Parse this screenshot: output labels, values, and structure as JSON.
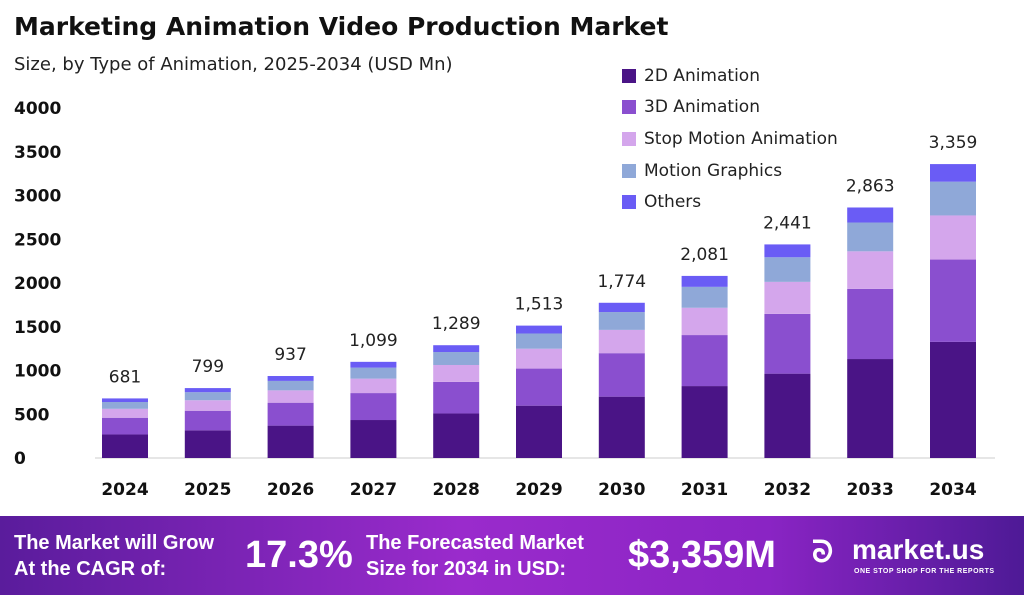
{
  "chart_data": {
    "type": "bar",
    "stacked": true,
    "title": "Marketing Animation Video Production Market",
    "subtitle": "Size, by Type of Animation, 2025-2034 (USD Mn)",
    "categories": [
      "2024",
      "2025",
      "2026",
      "2027",
      "2028",
      "2029",
      "2030",
      "2031",
      "2032",
      "2033",
      "2034"
    ],
    "totals": [
      "681",
      "799",
      "937",
      "1,099",
      "1,289",
      "1,513",
      "1,774",
      "2,081",
      "2,441",
      "2,863",
      "3,359"
    ],
    "series": [
      {
        "name": "2D Animation",
        "color": "#4a1486",
        "values": [
          269,
          316,
          370,
          434,
          509,
          598,
          701,
          822,
          964,
          1131,
          1327
        ]
      },
      {
        "name": "3D Animation",
        "color": "#8a4fcf",
        "values": [
          191,
          224,
          262,
          308,
          361,
          424,
          497,
          583,
          683,
          802,
          941
        ]
      },
      {
        "name": "Stop Motion Animation",
        "color": "#d4a6ec",
        "values": [
          102,
          120,
          141,
          165,
          193,
          227,
          266,
          312,
          366,
          429,
          504
        ]
      },
      {
        "name": "Motion Graphics",
        "color": "#8fa8d8",
        "values": [
          78,
          92,
          108,
          126,
          148,
          174,
          204,
          239,
          281,
          329,
          386
        ]
      },
      {
        "name": "Others",
        "color": "#6a5cf5",
        "values": [
          41,
          47,
          56,
          66,
          78,
          90,
          106,
          125,
          147,
          172,
          201
        ]
      }
    ],
    "yticks": [
      "0",
      "500",
      "1000",
      "1500",
      "2000",
      "2500",
      "3000",
      "3500",
      "4000"
    ],
    "ylim": [
      0,
      4000
    ],
    "grid": false,
    "legend_position": "top-right"
  },
  "footer": {
    "cagr_text_1": "The Market will Grow",
    "cagr_text_2": "At the CAGR of:",
    "cagr_value": "17.3%",
    "forecast_text_1": "The Forecasted Market",
    "forecast_text_2": "Size for 2034 in USD:",
    "forecast_value": "$3,359M",
    "logo_text": "market.us",
    "logo_tagline": "ONE STOP SHOP FOR THE REPORTS"
  }
}
